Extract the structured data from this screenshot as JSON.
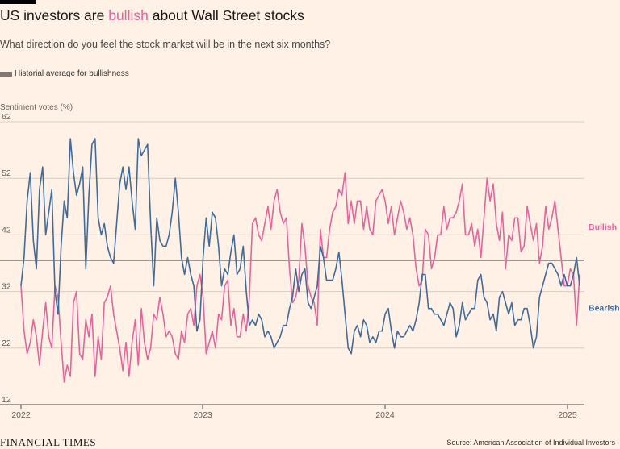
{
  "chart_data": {
    "type": "line",
    "title_before": "US investors are ",
    "title_highlight": "bullish",
    "title_after": " about Wall Street stocks",
    "subtitle": "What direction do you feel the stock market will be in the next six months?",
    "legend_label": "Historial average for bullishness",
    "ylabel": "Sentiment votes (%)",
    "ylim": [
      12,
      62
    ],
    "yticks": [
      "62",
      "52",
      "42",
      "32",
      "22",
      "12"
    ],
    "xticks": [
      "2022",
      "2023",
      "2024",
      "2025"
    ],
    "historical_average": 37.5,
    "colors": {
      "bullish": "#e2669c",
      "bearish": "#406b9a",
      "average": "#807973",
      "grid": "#d9cdc2",
      "axis": "#4d4845"
    },
    "series": [
      {
        "name": "Bullish",
        "values": [
          33,
          25,
          21,
          23,
          27,
          24,
          19,
          25,
          30,
          24,
          22,
          33,
          31,
          23,
          16,
          19,
          17,
          30,
          32,
          21,
          20,
          27,
          24,
          28,
          17,
          24,
          20,
          30,
          31,
          33,
          28,
          25,
          22,
          18,
          23,
          17,
          23,
          27,
          19,
          29,
          23,
          20,
          22,
          28,
          27,
          31,
          28,
          24,
          25,
          24,
          21,
          20,
          25,
          23,
          28,
          29,
          26,
          33,
          35,
          31,
          21,
          23,
          25,
          22,
          28,
          27,
          33,
          34,
          26,
          29,
          24,
          24,
          28,
          25,
          31,
          44,
          45,
          42,
          41,
          44,
          47,
          43,
          48,
          50,
          46,
          44,
          45,
          36,
          30,
          31,
          34,
          44,
          40,
          33,
          31,
          30,
          26,
          43,
          38,
          38,
          43,
          46,
          47,
          50,
          49,
          53,
          44,
          48,
          44,
          48,
          48,
          43,
          47,
          43,
          42,
          48,
          49,
          50,
          48,
          44,
          47,
          42,
          45,
          48,
          46,
          43,
          45,
          42,
          36,
          33,
          34,
          43,
          42,
          36,
          38,
          42,
          42,
          47,
          43,
          45,
          45,
          46,
          48,
          51,
          42,
          42,
          44,
          40,
          43,
          38,
          45,
          52,
          48,
          51,
          44,
          41,
          46,
          36,
          42,
          41,
          45,
          45,
          39,
          40,
          47,
          44,
          41,
          44,
          37,
          40,
          47,
          43,
          45,
          48,
          43,
          38,
          33,
          33,
          36,
          35,
          26,
          35
        ],
        "end_label": "Bullish"
      },
      {
        "name": "Bearish",
        "values": [
          33,
          38,
          48,
          53,
          41,
          36,
          50,
          54,
          42,
          46,
          50,
          32,
          28,
          40,
          48,
          45,
          59,
          53,
          49,
          51,
          54,
          36,
          49,
          58,
          59,
          45,
          42,
          44,
          40,
          38,
          37,
          44,
          51,
          54,
          50,
          54,
          48,
          43,
          59,
          56,
          57,
          58,
          44,
          33,
          45,
          41,
          40,
          40,
          42,
          46,
          52,
          46,
          38,
          35,
          38,
          35,
          33,
          25,
          27,
          38,
          45,
          40,
          46,
          45,
          40,
          33,
          36,
          35,
          39,
          42,
          35,
          36,
          40,
          32,
          26,
          27,
          26,
          28,
          27,
          24,
          25,
          24,
          22,
          23,
          24,
          26,
          26,
          29,
          31,
          36,
          32,
          35,
          36,
          30,
          29,
          31,
          33,
          40,
          38,
          34,
          34,
          34,
          36,
          39,
          34,
          28,
          22,
          21,
          25,
          26,
          24,
          27,
          26,
          23,
          24,
          23,
          25,
          25,
          28,
          29,
          25,
          22,
          25,
          24,
          24,
          25,
          26,
          25,
          27,
          30,
          35,
          35,
          29,
          29,
          28,
          28,
          27,
          26,
          28,
          30,
          29,
          24,
          26,
          30,
          27,
          28,
          29,
          29,
          34,
          35,
          31,
          30,
          27,
          28,
          25,
          31,
          32,
          30,
          28,
          30,
          26,
          27,
          27,
          29,
          29,
          26,
          22,
          24,
          31,
          33,
          35,
          37,
          37,
          36,
          35,
          33,
          35,
          33,
          33,
          35,
          38,
          33
        ],
        "end_label": "Bearish"
      }
    ]
  },
  "footer": {
    "brand": "FINANCIAL TIMES",
    "source": "Source: American Association of Individual Investors"
  }
}
